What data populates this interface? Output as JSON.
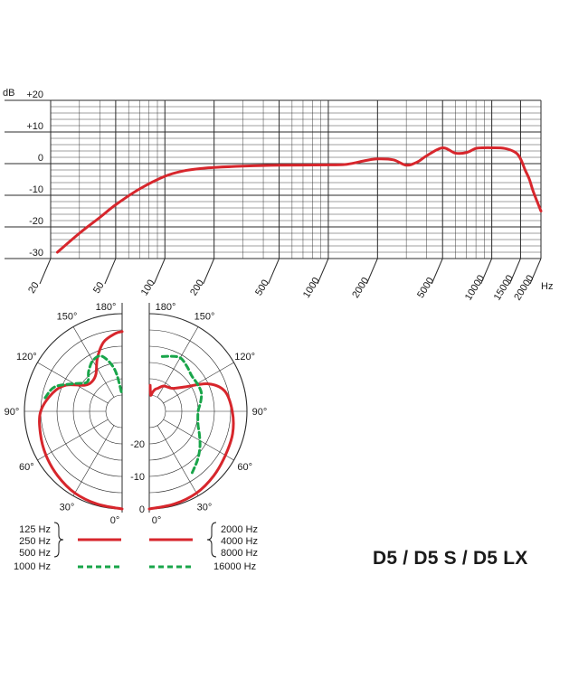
{
  "model_title": "D5 / D5 S / D5 LX",
  "colors": {
    "low_freq": "#d7262c",
    "high_freq": "#19a54a",
    "grid": "#2b2b2b"
  },
  "chart_data": [
    {
      "type": "line",
      "ylabel": "dB",
      "xunit": "Hz",
      "xscale": "log",
      "xlim": [
        20,
        20000
      ],
      "ylim": [
        -30,
        20
      ],
      "y_ticks": [
        {
          "value": 20,
          "label": "+20"
        },
        {
          "value": 10,
          "label": "+10"
        },
        {
          "value": 0,
          "label": "0"
        },
        {
          "value": -10,
          "label": "-10"
        },
        {
          "value": -20,
          "label": "-20"
        },
        {
          "value": -30,
          "label": "-30"
        }
      ],
      "x_ticks": [
        {
          "value": 20,
          "label": "20"
        },
        {
          "value": 50,
          "label": "50"
        },
        {
          "value": 100,
          "label": "100"
        },
        {
          "value": 200,
          "label": "200"
        },
        {
          "value": 500,
          "label": "500"
        },
        {
          "value": 1000,
          "label": "1000"
        },
        {
          "value": 2000,
          "label": "2000"
        },
        {
          "value": 5000,
          "label": "5000"
        },
        {
          "value": 10000,
          "label": "10000"
        },
        {
          "value": 15000,
          "label": "15000"
        },
        {
          "value": 20000,
          "label": "20000"
        }
      ],
      "grid": true,
      "series": [
        {
          "x": [
            22,
            30,
            40,
            50,
            70,
            100,
            130,
            170,
            200,
            300,
            500,
            1000,
            1300,
            1700,
            2000,
            2500,
            3000,
            3500,
            4000,
            5000,
            6000,
            7000,
            8000,
            9000,
            10000,
            12000,
            14000,
            15000,
            16000,
            17000,
            18000,
            20000
          ],
          "y": [
            -28,
            -22,
            -17,
            -13,
            -8,
            -4,
            -2.3,
            -1.5,
            -1.2,
            -0.8,
            -0.5,
            -0.4,
            -0.2,
            1,
            1.5,
            1.2,
            -0.5,
            0.5,
            2.5,
            5,
            3.3,
            3.5,
            4.8,
            5,
            5,
            4.8,
            3.5,
            1.5,
            -2,
            -5,
            -9,
            -15
          ]
        }
      ]
    },
    {
      "type": "polar",
      "angle_labels": [
        {
          "value": 0,
          "label": "0°"
        },
        {
          "value": 30,
          "label": "30°"
        },
        {
          "value": 60,
          "label": "60°"
        },
        {
          "value": 90,
          "label": "90°"
        },
        {
          "value": 120,
          "label": "120°"
        },
        {
          "value": 150,
          "label": "150°"
        },
        {
          "value": 180,
          "label": "180°"
        }
      ],
      "radial_labels": [
        {
          "value": 0,
          "label": "0"
        },
        {
          "value": -10,
          "label": "-10"
        },
        {
          "value": -20,
          "label": "-20"
        }
      ],
      "left_legend": {
        "line1": "125 Hz",
        "line2": "250 Hz",
        "line3": "500 Hz",
        "line4": "1000 Hz"
      },
      "right_legend": {
        "line1": "2000 Hz",
        "line2": "4000 Hz",
        "line3": "8000 Hz",
        "line4": "16000 Hz"
      },
      "series": [
        {
          "side": "left",
          "style": "solid",
          "angles": [
            0,
            15,
            30,
            45,
            60,
            75,
            90,
            105,
            115,
            125,
            135,
            145,
            155,
            165,
            175,
            180
          ],
          "values": [
            0,
            -0.5,
            -1,
            -2,
            -3,
            -4,
            -5,
            -8,
            -11,
            -16,
            -17,
            -16,
            -12,
            -8,
            -6,
            -5.5
          ]
        },
        {
          "side": "left",
          "style": "dashed",
          "angles": [
            100,
            110,
            120,
            130,
            140,
            150,
            160,
            170,
            180
          ],
          "values": [
            -6,
            -8,
            -13,
            -16,
            -14,
            -12,
            -12,
            -17,
            -25
          ]
        },
        {
          "side": "right",
          "style": "solid",
          "angles": [
            0,
            15,
            30,
            45,
            60,
            75,
            90,
            105,
            115,
            125,
            135,
            150,
            160,
            165,
            170,
            175,
            178
          ],
          "values": [
            0,
            -0.5,
            -1,
            -2,
            -3,
            -3.5,
            -4.5,
            -6,
            -10,
            -17,
            -20,
            -21,
            -22.5,
            -23,
            -24,
            -25,
            -22
          ]
        },
        {
          "side": "right",
          "style": "dashed",
          "angles": [
            35,
            45,
            55,
            65,
            75,
            90,
            100,
            110,
            120,
            130,
            140,
            150,
            160,
            170
          ],
          "values": [
            -7,
            -9,
            -11,
            -13,
            -14.5,
            -15,
            -14,
            -13,
            -13,
            -13,
            -12,
            -11,
            -12,
            -13
          ]
        }
      ]
    }
  ]
}
